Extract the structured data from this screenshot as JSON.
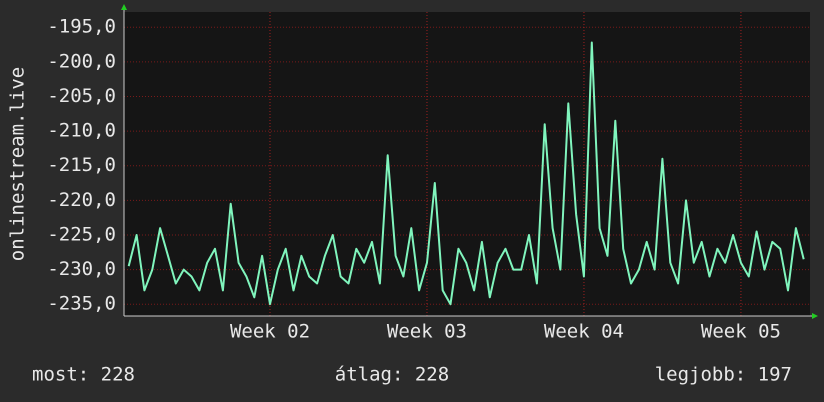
{
  "chart_data": {
    "type": "line",
    "y_label": "onlinestream.live",
    "x": [
      1.1,
      1.15,
      1.2,
      1.25,
      1.3,
      1.35,
      1.4,
      1.45,
      1.5,
      1.55,
      1.6,
      1.65,
      1.7,
      1.75,
      1.8,
      1.85,
      1.9,
      1.95,
      2.0,
      2.05,
      2.1,
      2.15,
      2.2,
      2.25,
      2.3,
      2.35,
      2.4,
      2.45,
      2.5,
      2.55,
      2.6,
      2.65,
      2.7,
      2.75,
      2.8,
      2.85,
      2.9,
      2.95,
      3.0,
      3.05,
      3.1,
      3.15,
      3.2,
      3.25,
      3.3,
      3.35,
      3.4,
      3.45,
      3.5,
      3.55,
      3.6,
      3.65,
      3.7,
      3.75,
      3.8,
      3.85,
      3.9,
      3.95,
      4.0,
      4.05,
      4.1,
      4.15,
      4.2,
      4.25,
      4.3,
      4.35,
      4.4,
      4.45,
      4.5,
      4.55,
      4.6,
      4.65,
      4.7,
      4.75,
      4.8,
      4.85,
      4.9,
      4.95,
      5.0,
      5.05,
      5.1,
      5.15,
      5.2,
      5.25,
      5.3,
      5.35,
      5.4
    ],
    "values": [
      -229.5,
      -225,
      -233,
      -230,
      -224,
      -228,
      -232,
      -230,
      -231,
      -233,
      -229,
      -227,
      -233,
      -220.5,
      -229,
      -231,
      -234,
      -228,
      -235,
      -230,
      -227,
      -233,
      -228,
      -231,
      -232,
      -228,
      -225,
      -231,
      -232,
      -227,
      -229,
      -226,
      -232,
      -213.5,
      -228,
      -231,
      -224,
      -233,
      -229,
      -217.5,
      -233,
      -235,
      -227,
      -229,
      -233,
      -226,
      -234,
      -229,
      -227,
      -230,
      -230,
      -225,
      -232,
      -209,
      -224,
      -230,
      -206,
      -222,
      -231,
      -197.2,
      -224,
      -228,
      -208.5,
      -227,
      -232,
      -230,
      -226,
      -230,
      -214,
      -229,
      -232,
      -220,
      -229,
      -226,
      -231,
      -227,
      -229,
      -225,
      -229,
      -231,
      -224.5,
      -230,
      -226,
      -227,
      -233,
      -224,
      -228.5
    ],
    "color": "#80f5bd",
    "xlim": [
      1.07,
      5.44
    ],
    "xticks": [
      {
        "value": 2,
        "label": "Week 02"
      },
      {
        "value": 3,
        "label": "Week 03"
      },
      {
        "value": 4,
        "label": "Week 04"
      },
      {
        "value": 5,
        "label": "Week 05"
      }
    ],
    "ylim": [
      -236.7,
      -192.8
    ],
    "yticks": [
      {
        "value": -195,
        "label": "-195,0"
      },
      {
        "value": -200,
        "label": "-200,0"
      },
      {
        "value": -205,
        "label": "-205,0"
      },
      {
        "value": -210,
        "label": "-210,0"
      },
      {
        "value": -215,
        "label": "-215,0"
      },
      {
        "value": -220,
        "label": "-220,0"
      },
      {
        "value": -225,
        "label": "-225,0"
      },
      {
        "value": -230,
        "label": "-230,0"
      },
      {
        "value": -235,
        "label": "-235,0"
      }
    ],
    "grid": true,
    "stats": [
      "most: 228",
      "átlag: 228",
      "legjobb: 197"
    ]
  }
}
